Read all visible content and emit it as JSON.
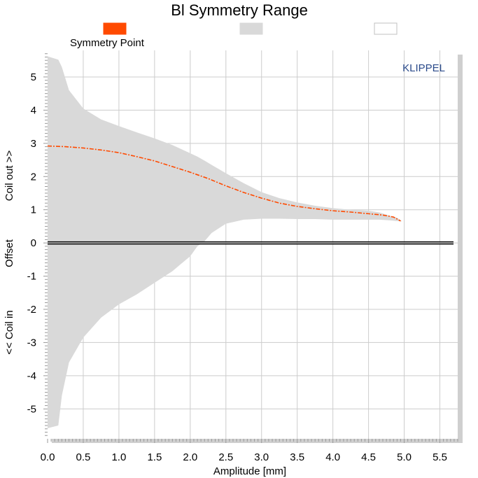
{
  "chart_data": {
    "type": "area",
    "title": "Bl Symmetry Range",
    "xlabel": "Amplitude [mm]",
    "ylabel_segments": [
      "Coil out >>",
      "Offset",
      "<< Coil in"
    ],
    "watermark": "KLIPPEL",
    "xlim": [
      0,
      5.75
    ],
    "ylim": [
      -5.9,
      5.8
    ],
    "x_ticks": [
      0.0,
      0.5,
      1.0,
      1.5,
      2.0,
      2.5,
      3.0,
      3.5,
      4.0,
      4.5,
      5.0,
      5.5
    ],
    "x_tick_labels": [
      "0.0",
      "0.5",
      "1.0",
      "1.5",
      "2.0",
      "2.5",
      "3.0",
      "3.5",
      "4.0",
      "4.5",
      "5.0",
      "5.5"
    ],
    "y_ticks": [
      5,
      4,
      3,
      2,
      1,
      0,
      -1,
      -2,
      -3,
      -4,
      -5
    ],
    "y_tick_labels": [
      "5",
      "4",
      "3",
      "2",
      "1",
      "0",
      "-1",
      "-2",
      "-3",
      "-4",
      "-5"
    ],
    "grid": true,
    "legend": {
      "placement": "top",
      "items": [
        {
          "label": "Symmetry Point",
          "color": "#ff4a00"
        },
        {
          "label": "",
          "color": "#d9d9d9"
        },
        {
          "label": "",
          "color": "#ffffff"
        }
      ]
    },
    "series": [
      {
        "name": "Symmetry Point",
        "color": "#ff4a00",
        "style": "dashed",
        "x": [
          0,
          0.25,
          0.5,
          0.75,
          1.0,
          1.25,
          1.5,
          1.75,
          2.0,
          2.25,
          2.5,
          2.75,
          3.0,
          3.25,
          3.5,
          3.75,
          4.0,
          4.25,
          4.5,
          4.7,
          4.85,
          4.95
        ],
        "y": [
          2.92,
          2.9,
          2.86,
          2.8,
          2.72,
          2.6,
          2.47,
          2.3,
          2.13,
          1.94,
          1.72,
          1.52,
          1.35,
          1.2,
          1.1,
          1.03,
          0.97,
          0.93,
          0.88,
          0.84,
          0.78,
          0.66
        ]
      }
    ],
    "range_band": {
      "color": "#d9d9d9",
      "x": [
        0,
        0.15,
        0.2,
        0.3,
        0.5,
        0.75,
        1.0,
        1.25,
        1.5,
        1.75,
        2.0,
        2.1,
        2.2,
        2.3,
        2.5,
        2.75,
        3.0,
        3.25,
        3.5,
        3.75,
        4.0,
        4.25,
        4.5,
        4.65,
        4.8,
        4.9,
        4.97
      ],
      "upper": [
        5.62,
        5.52,
        5.3,
        4.6,
        4.05,
        3.72,
        3.52,
        3.33,
        3.15,
        2.95,
        2.7,
        2.6,
        2.48,
        2.35,
        2.1,
        1.8,
        1.53,
        1.35,
        1.22,
        1.12,
        1.05,
        1.0,
        0.97,
        0.92,
        0.82,
        0.76,
        0.65
      ],
      "lower": [
        -5.58,
        -5.5,
        -4.6,
        -3.6,
        -2.85,
        -2.25,
        -1.85,
        -1.55,
        -1.2,
        -0.85,
        -0.4,
        -0.1,
        0.05,
        0.3,
        0.58,
        0.7,
        0.73,
        0.73,
        0.72,
        0.72,
        0.7,
        0.7,
        0.7,
        0.7,
        0.68,
        0.66,
        0.65
      ]
    }
  }
}
